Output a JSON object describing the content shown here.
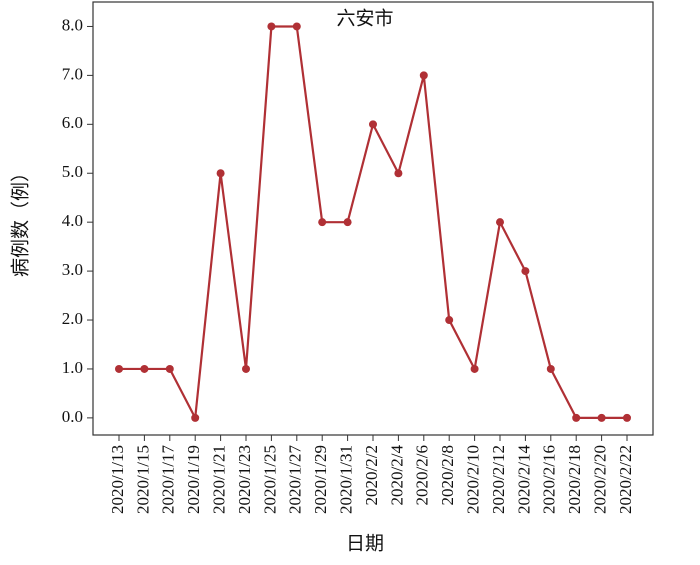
{
  "chart_data": {
    "type": "line",
    "title": "六安市",
    "x_label": "日期",
    "y_label": "病例数（例）",
    "categories": [
      "2020/1/13",
      "2020/1/15",
      "2020/1/17",
      "2020/1/19",
      "2020/1/21",
      "2020/1/23",
      "2020/1/25",
      "2020/1/27",
      "2020/1/29",
      "2020/1/31",
      "2020/2/2",
      "2020/2/4",
      "2020/2/6",
      "2020/2/8",
      "2020/2/10",
      "2020/2/12",
      "2020/2/14",
      "2020/2/16",
      "2020/2/18",
      "2020/2/20",
      "2020/2/22"
    ],
    "series": [
      {
        "name": "六安市",
        "color": "#b03035",
        "values": [
          1,
          1,
          1,
          0,
          5,
          1,
          8,
          8,
          4,
          4,
          6,
          5,
          7,
          2,
          1,
          4,
          3,
          1,
          0,
          0,
          0
        ]
      }
    ],
    "ylim": [
      -0.35,
      8.5
    ],
    "yticks": [
      {
        "value": 0,
        "label": "0.0"
      },
      {
        "value": 1,
        "label": "1.0"
      },
      {
        "value": 2,
        "label": "2.0"
      },
      {
        "value": 3,
        "label": "3.0"
      },
      {
        "value": 4,
        "label": "4.0"
      },
      {
        "value": 5,
        "label": "5.0"
      },
      {
        "value": 6,
        "label": "6.0"
      },
      {
        "value": 7,
        "label": "7.0"
      },
      {
        "value": 8,
        "label": "8.0"
      }
    ]
  }
}
